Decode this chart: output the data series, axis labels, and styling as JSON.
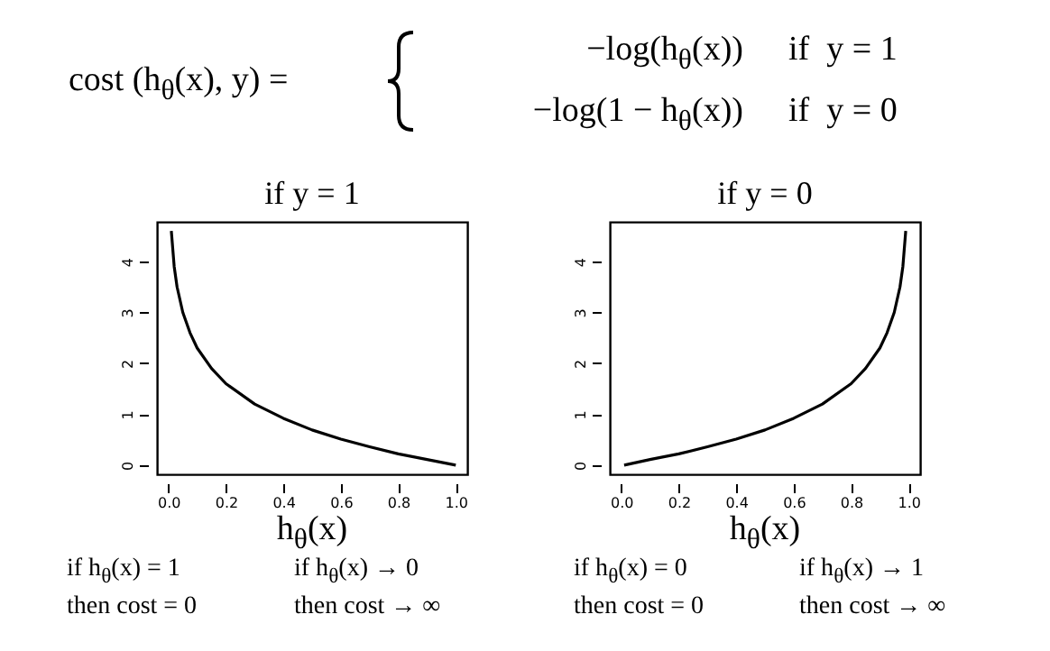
{
  "chart_data": [
    {
      "type": "line",
      "title": "if  y = 1",
      "xlabel": "h$_{θ}$(x)",
      "annotations": [
        "cost (h$_{θ}$(x), y) =",
        "−log(h$_{θ}$(x))",
        "if  y = 1",
        "−log(1 − h$_{θ}$(x))",
        "if  y = 0",
        "if h$_{θ}$(x) = 1",
        "then cost = 0",
        "if h$_{θ}$(x) → 0",
        "then cost → ∞"
      ],
      "x": [
        0.01,
        0.02,
        0.03,
        0.05,
        0.075,
        0.1,
        0.15,
        0.2,
        0.3,
        0.4,
        0.5,
        0.6,
        0.7,
        0.8,
        0.9,
        1.0
      ],
      "series": [
        {
          "color": "#000000",
          "values": [
            4.6,
            3.9,
            3.5,
            3.0,
            2.6,
            2.3,
            1.9,
            1.6,
            1.2,
            0.92,
            0.69,
            0.51,
            0.36,
            0.22,
            0.11,
            0
          ]
        }
      ],
      "xlim": [
        -0.04,
        1.04
      ],
      "ylim": [
        -0.18,
        4.78
      ],
      "xticks": [
        {
          "value": 0,
          "label": "0.0"
        },
        {
          "value": 0.2,
          "label": "0.2"
        },
        {
          "value": 0.4,
          "label": "0.4"
        },
        {
          "value": 0.6,
          "label": "0.6"
        },
        {
          "value": 0.8,
          "label": "0.8"
        },
        {
          "value": 1,
          "label": "1.0"
        }
      ],
      "yticks": [
        0,
        1,
        2,
        3,
        4
      ]
    },
    {
      "type": "line",
      "title": "if  y = 0",
      "xlabel": "h$_{θ}$(x)",
      "annotations": [
        "if h$_{θ}$(x) = 0",
        "then cost = 0",
        "if h$_{θ}$(x) → 1",
        "then cost → ∞"
      ],
      "x": [
        0.01,
        0.1,
        0.2,
        0.3,
        0.4,
        0.5,
        0.6,
        0.7,
        0.8,
        0.85,
        0.9,
        0.925,
        0.95,
        0.97,
        0.98,
        0.99
      ],
      "series": [
        {
          "color": "#000000",
          "values": [
            0,
            0.11,
            0.22,
            0.36,
            0.51,
            0.69,
            0.92,
            1.2,
            1.6,
            1.9,
            2.3,
            2.6,
            3.0,
            3.5,
            3.9,
            4.6
          ]
        }
      ],
      "xlim": [
        -0.04,
        1.04
      ],
      "ylim": [
        -0.18,
        4.78
      ],
      "xticks": [
        {
          "value": 0,
          "label": "0.0"
        },
        {
          "value": 0.2,
          "label": "0.2"
        },
        {
          "value": 0.4,
          "label": "0.4"
        },
        {
          "value": 0.6,
          "label": "0.6"
        },
        {
          "value": 0.8,
          "label": "0.8"
        },
        {
          "value": 1,
          "label": "1.0"
        }
      ],
      "yticks": [
        0,
        1,
        2,
        3,
        4
      ]
    }
  ]
}
